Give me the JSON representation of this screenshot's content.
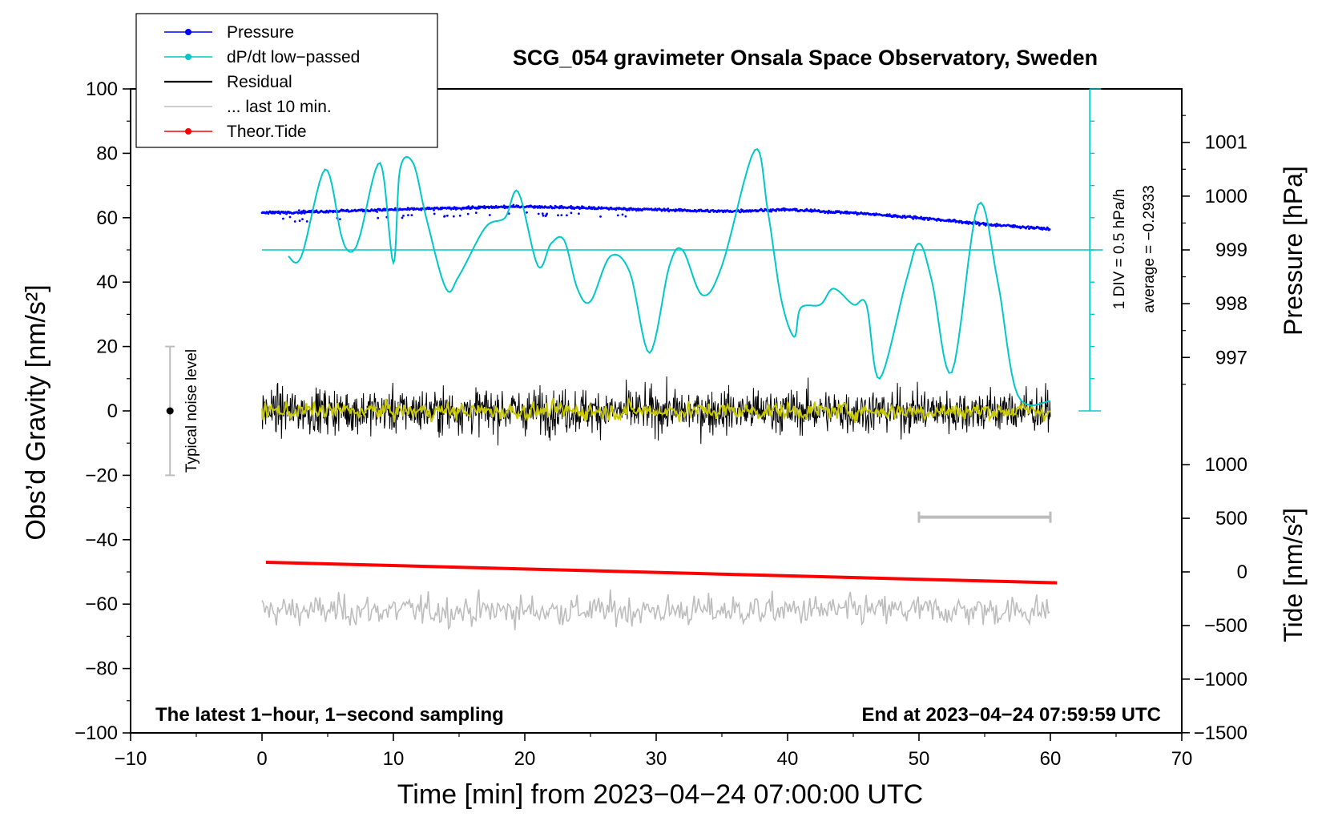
{
  "chart_data": {
    "type": "line",
    "title": "SCG_054 gravimeter Onsala Space Observatory, Sweden",
    "xlabel": "Time [min] from 2023−04−24 07:00:00 UTC",
    "ylabel": "Obs’d Gravity [nm/s²]",
    "ylabel_right_pressure": "Pressure [hPa]",
    "ylabel_right_tide": "Tide [nm/s²]",
    "xlim": [
      -10,
      70
    ],
    "ylim": [
      -100,
      100
    ],
    "x_ticks": [
      "−10",
      "0",
      "10",
      "20",
      "30",
      "40",
      "50",
      "60",
      "70"
    ],
    "y_ticks": [
      "100",
      "80",
      "60",
      "40",
      "20",
      "0",
      "−20",
      "−40",
      "−60",
      "−80",
      "−100"
    ],
    "pressure_ticks": [
      "1001",
      "1000",
      "999",
      "998",
      "997"
    ],
    "pressure_axis": {
      "ref_value": 999,
      "ref_gravity": 50,
      "gravity_per_hPa": 16.7
    },
    "tide_ticks": [
      "1000",
      "500",
      "0",
      "−500",
      "−1000",
      "−1500"
    ],
    "tide_axis": {
      "ref_value": 0,
      "ref_gravity": -50,
      "gravity_per_unit": 0.0333
    },
    "dpdt_scale": {
      "label": "1 DIV = 0.5 hPa/h",
      "average": "average = −0.2933",
      "baseline_gravity": 50,
      "axis_x": 63,
      "axis_range": [
        0,
        100
      ]
    },
    "noise_bar": {
      "label": "Typical noise level",
      "x": -7,
      "range": [
        -20,
        20
      ],
      "center": 0
    },
    "ten_min_bar": {
      "x_range": [
        50,
        60
      ],
      "y": -33
    },
    "notes": {
      "left": "The latest 1−hour, 1−second sampling",
      "right": "End at 2023−04−24 07:59:59 UTC"
    },
    "legend": [
      {
        "label": "Pressure",
        "color": "#0000ff",
        "marker": true
      },
      {
        "label": "dP/dt low−passed",
        "color": "#00c8c8",
        "marker": true
      },
      {
        "label": "Residual",
        "color": "#000000",
        "marker": false
      },
      {
        "label": "... last 10 min.",
        "color": "#bdbdbd",
        "marker": false
      },
      {
        "label": "Theor.Tide",
        "color": "#ff0000",
        "marker": true
      }
    ],
    "series": [
      {
        "name": "Pressure",
        "color": "#0000ff",
        "x": [
          0,
          5,
          10,
          15,
          20,
          25,
          30,
          35,
          40,
          45,
          50,
          55,
          60
        ],
        "y": [
          61.5,
          62,
          62.5,
          63,
          63.5,
          63,
          62.5,
          62,
          62.5,
          61.5,
          60,
          58,
          56.5
        ]
      },
      {
        "name": "dP/dt low−passed",
        "color": "#00c8c8",
        "x": [
          2,
          3,
          4.8,
          6,
          6.5,
          7,
          7.5,
          9,
          10,
          10.5,
          11.5,
          12.5,
          14,
          15,
          17,
          18.5,
          19.5,
          21,
          22,
          23,
          24,
          25,
          26.5,
          28,
          29.5,
          31,
          32,
          33.5,
          35,
          37.5,
          38.5,
          39.5,
          40.5,
          41,
          42.5,
          43.5,
          45,
          46,
          47,
          49,
          50,
          51,
          52.5,
          54.5,
          56,
          57.5,
          60
        ],
        "y": [
          48,
          48,
          75,
          55,
          50,
          50,
          55,
          77,
          46,
          75,
          77,
          60,
          38,
          42,
          57,
          60,
          68,
          45,
          52,
          53,
          38,
          34,
          48,
          43,
          18,
          45,
          50,
          36,
          45,
          81,
          62,
          35,
          23,
          32,
          33,
          38,
          33,
          33,
          10,
          40,
          52,
          40,
          12,
          64,
          40,
          5,
          3
        ]
      },
      {
        "name": "Residual",
        "color": "#000000",
        "x_range": [
          0,
          60
        ],
        "amplitude": 8,
        "center": 0
      },
      {
        "name": "Residual low−passed",
        "color": "#c8c800",
        "x_range": [
          0,
          60
        ],
        "amplitude": 4,
        "center": 0
      },
      {
        "name": "... last 10 min.",
        "color": "#bdbdbd",
        "x_range": [
          0,
          60
        ],
        "amplitude": 6,
        "center": -62
      },
      {
        "name": "Theor.Tide",
        "color": "#ff0000",
        "x": [
          0.3,
          60.5
        ],
        "y": [
          -47,
          -53.4
        ]
      }
    ]
  }
}
